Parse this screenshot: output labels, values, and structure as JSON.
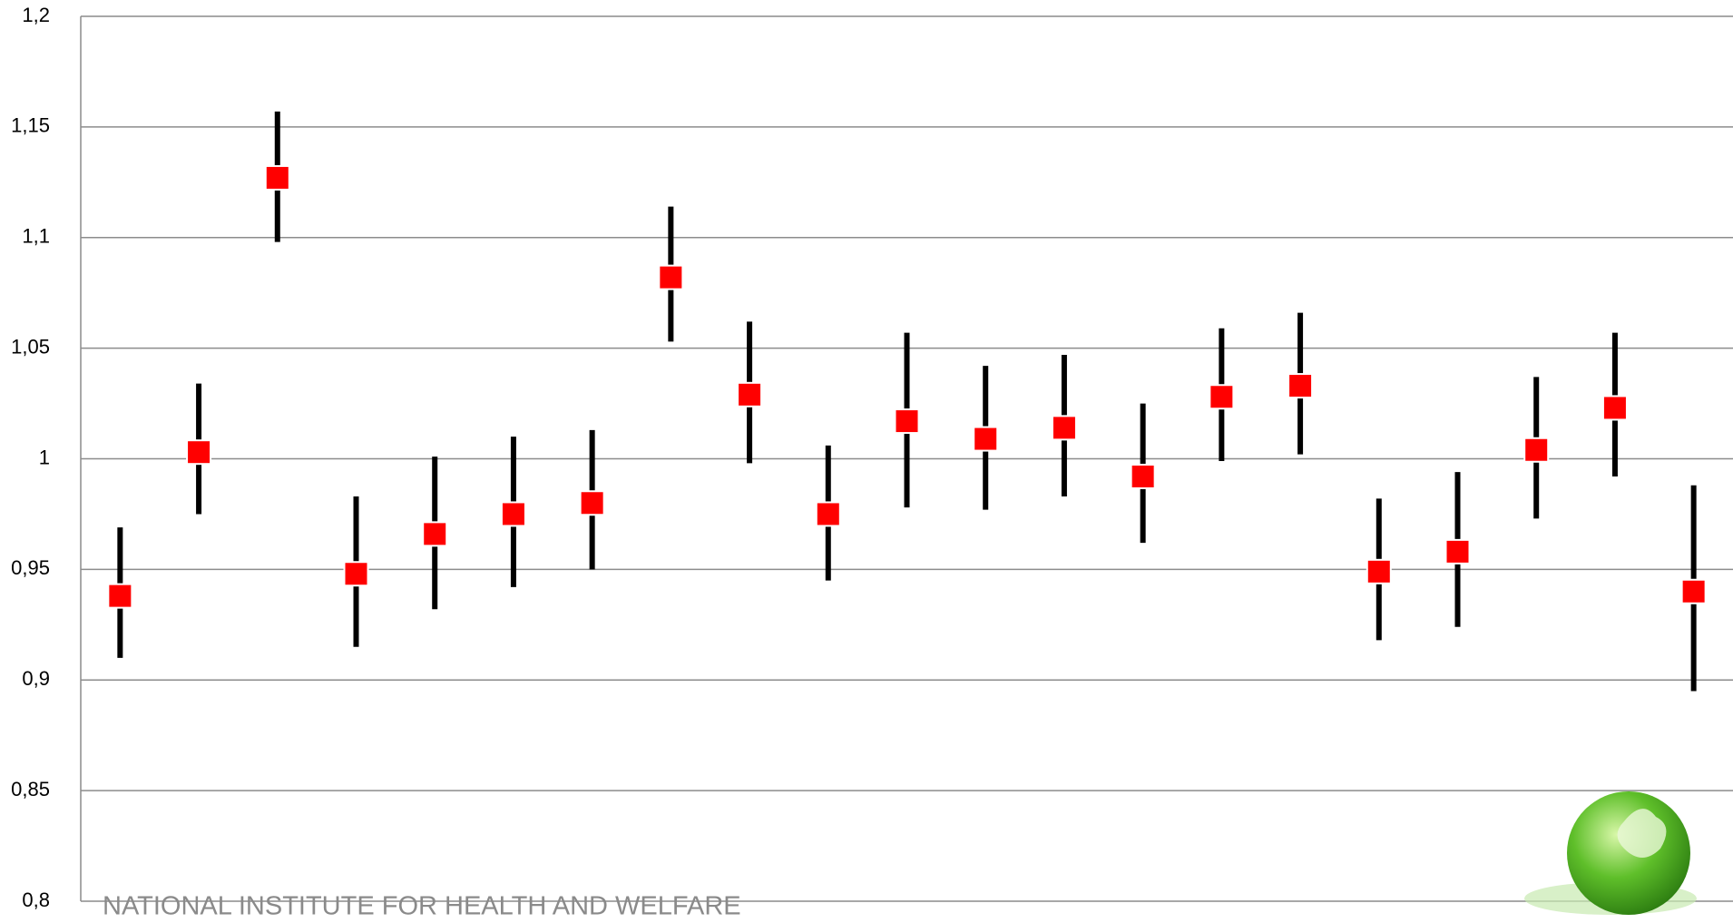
{
  "chart_data": {
    "type": "errorbar",
    "categories": [
      null,
      null,
      null,
      null,
      null,
      null,
      null,
      null,
      null,
      null,
      null,
      null,
      null,
      null,
      null,
      null,
      null,
      null,
      null,
      null,
      null
    ],
    "series": [
      {
        "color": "#ff0000",
        "bar_color": "#000000",
        "values": [
          0.938,
          1.003,
          1.127,
          0.948,
          0.966,
          0.975,
          0.98,
          1.082,
          1.029,
          0.975,
          1.017,
          1.009,
          1.014,
          0.992,
          1.028,
          1.033,
          0.949,
          0.958,
          1.004,
          1.023,
          0.94
        ],
        "low": [
          0.91,
          0.975,
          1.098,
          0.915,
          0.932,
          0.942,
          0.95,
          1.053,
          0.998,
          0.945,
          0.978,
          0.977,
          0.983,
          0.962,
          0.999,
          1.002,
          0.918,
          0.924,
          0.973,
          0.992,
          0.895
        ],
        "high": [
          0.969,
          1.034,
          1.157,
          0.983,
          1.001,
          1.01,
          1.013,
          1.114,
          1.062,
          1.006,
          1.057,
          1.042,
          1.047,
          1.025,
          1.059,
          1.066,
          0.982,
          0.994,
          1.037,
          1.057,
          0.988
        ]
      }
    ],
    "ylim": [
      0.8,
      1.2
    ],
    "yticks": [
      {
        "value": 0.8,
        "label": "0,8"
      },
      {
        "value": 0.85,
        "label": "0,85"
      },
      {
        "value": 0.9,
        "label": "0,9"
      },
      {
        "value": 0.95,
        "label": "0,95"
      },
      1,
      {
        "value": 1.05,
        "label": "1,05"
      },
      {
        "value": 1.1,
        "label": "1,1"
      },
      {
        "value": 1.15,
        "label": "1,15"
      },
      {
        "value": 1.2,
        "label": "1,2"
      }
    ],
    "grid": true
  },
  "footer": "NATIONAL INSTITUTE FOR HEALTH AND WELFARE"
}
